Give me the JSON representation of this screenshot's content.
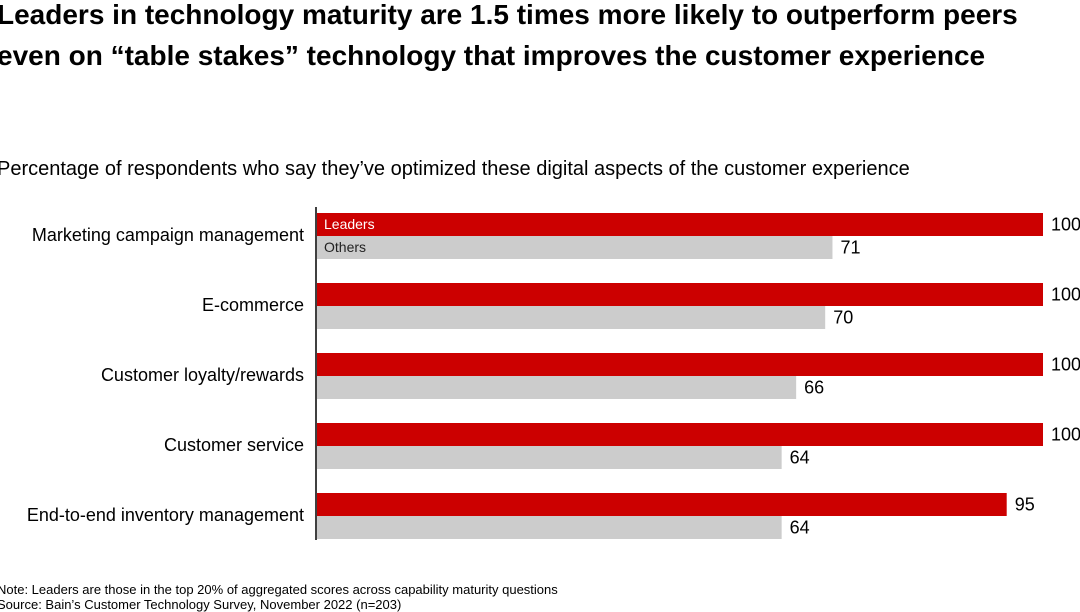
{
  "chart_data": {
    "type": "bar",
    "orientation": "horizontal",
    "title": "Leaders in technology maturity are 1.5 times more likely to outperform peers even on “table stakes” technology that improves the customer experience",
    "subtitle": "Percentage of respondents who say they’ve optimized these digital aspects of the customer experience",
    "categories": [
      "Marketing campaign management",
      "E-commerce",
      "Customer loyalty/rewards",
      "Customer service",
      "End-to-end inventory management"
    ],
    "series": [
      {
        "name": "Leaders",
        "color": "#cc0000",
        "values": [
          100,
          100,
          100,
          100,
          95
        ]
      },
      {
        "name": "Others",
        "color": "#cccccc",
        "values": [
          71,
          70,
          66,
          64,
          64
        ]
      }
    ],
    "xlim": [
      0,
      100
    ],
    "notes": [
      "Note: Leaders are those in the top 20% of aggregated scores across capability maturity questions",
      "Source: Bain’s Customer Technology Survey, November 2022 (n=203)"
    ]
  }
}
